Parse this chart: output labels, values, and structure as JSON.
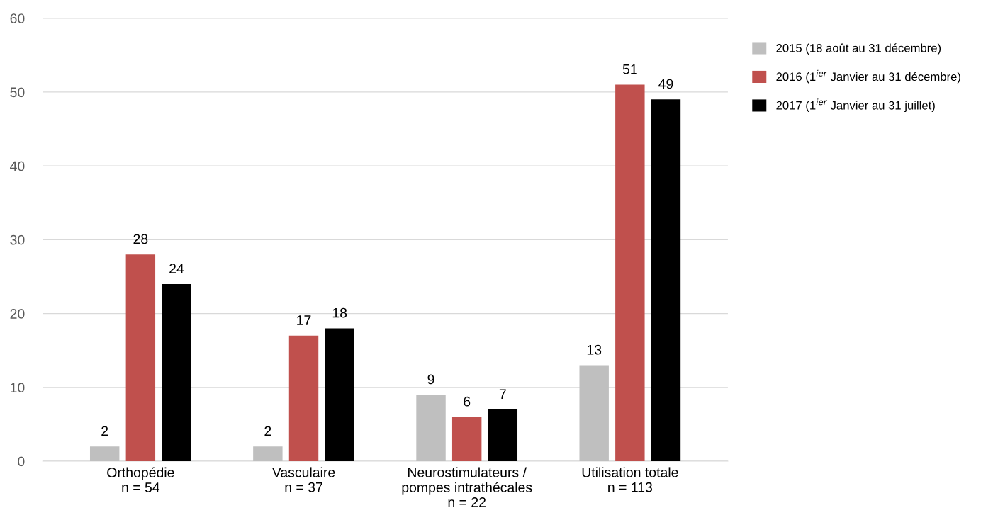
{
  "chart_data": {
    "type": "bar",
    "categories": [
      "Orthopédie\nn = 54",
      "Vasculaire\nn = 37",
      "Neurostimulateurs /\npompes intrathécales\nn = 22",
      "Utilisation totale\nn = 113"
    ],
    "series": [
      {
        "name": "2015 (18 août au 31 décembre)",
        "color": "#bfbfbf",
        "values": [
          2,
          2,
          9,
          13
        ]
      },
      {
        "name": "2016 (1$^{ier}$ Janvier au 31 décembre)",
        "color": "#c0504d",
        "values": [
          28,
          17,
          6,
          51
        ]
      },
      {
        "name": "2017 (1$^{ier}$ Janvier au 31 juillet)",
        "color": "#000000",
        "values": [
          24,
          18,
          7,
          49
        ]
      }
    ],
    "ylim": [
      0,
      60
    ],
    "yticks": [
      0,
      10,
      20,
      30,
      40,
      50,
      60
    ],
    "grid": "y",
    "legend": "top right",
    "data_labels": true
  }
}
